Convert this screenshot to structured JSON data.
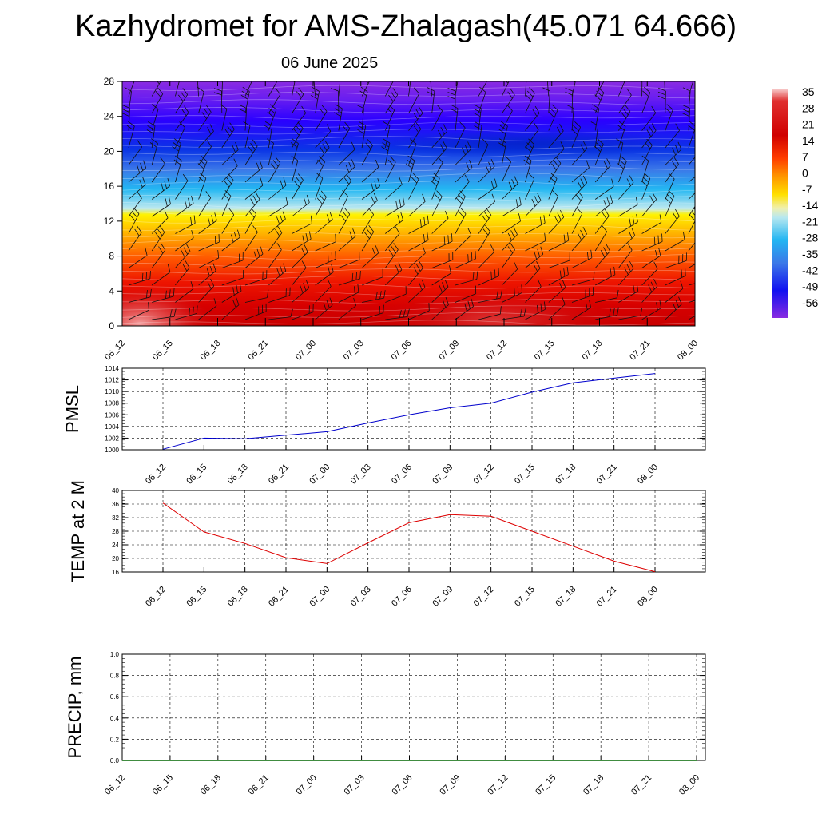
{
  "title": "Kazhydromet for AMS-Zhalagash(45.071 64.666)",
  "subtitle": "06 June 2025",
  "chart_data": [
    {
      "type": "heatmap",
      "title": "",
      "x": [
        "06_12",
        "06_15",
        "06_18",
        "06_21",
        "07_00",
        "07_03",
        "07_06",
        "07_09",
        "07_12",
        "07_15",
        "07_18",
        "07_21",
        "08_00"
      ],
      "y_ticks": [
        0,
        4,
        8,
        12,
        16,
        20,
        24,
        28
      ],
      "ylim": [
        0,
        28
      ],
      "colorbar": {
        "labels": [
          "35",
          "28",
          "21",
          "14",
          "7",
          "0",
          "-7",
          "-14",
          "-21",
          "-28",
          "-35",
          "-42",
          "-49",
          "-56"
        ],
        "range": [
          -60,
          37
        ]
      },
      "wind_barbs": true
    },
    {
      "type": "line",
      "ylabel": "PMSL",
      "x": [
        "06_12",
        "06_15",
        "06_18",
        "06_21",
        "07_00",
        "07_03",
        "07_06",
        "07_09",
        "07_12",
        "07_15",
        "07_18",
        "07_21",
        "08_00"
      ],
      "y_ticks": [
        1000,
        1002,
        1004,
        1006,
        1008,
        1010,
        1012,
        1014
      ],
      "ylim": [
        1000,
        1014
      ],
      "series": [
        {
          "values": [
            1000.1,
            1002,
            1001.9,
            1002.5,
            1003.1,
            1004.6,
            1006,
            1007.2,
            1008,
            1009.9,
            1011.5,
            1012.3,
            1013.1
          ],
          "color": "#0000cc"
        }
      ],
      "grid": true
    },
    {
      "type": "line",
      "ylabel": "TEMP at 2 M",
      "x": [
        "06_12",
        "06_15",
        "06_18",
        "06_21",
        "07_00",
        "07_03",
        "07_06",
        "07_09",
        "07_12",
        "07_15",
        "07_18",
        "07_21",
        "08_00"
      ],
      "y_ticks": [
        16,
        20,
        24,
        28,
        32,
        36,
        40
      ],
      "ylim": [
        16,
        40
      ],
      "series": [
        {
          "values": [
            36.3,
            27.8,
            24.4,
            20.2,
            18.5,
            24.6,
            30.5,
            32.9,
            32.4,
            28,
            23.6,
            19.2,
            16.1
          ],
          "color": "#dd0000"
        }
      ],
      "grid": true
    },
    {
      "type": "line",
      "ylabel": "PRECIP, mm",
      "x": [
        "06_12",
        "06_15",
        "06_18",
        "06_21",
        "07_00",
        "07_03",
        "07_06",
        "07_09",
        "07_12",
        "07_15",
        "07_18",
        "07_21",
        "08_00"
      ],
      "y_ticks": [
        "0.0",
        "0.2",
        "0.4",
        "0.6",
        "0.8",
        "1.0"
      ],
      "ylim": [
        0,
        1
      ],
      "series": [
        {
          "values": [
            0,
            0,
            0,
            0,
            0,
            0,
            0,
            0,
            0,
            0,
            0,
            0,
            0
          ],
          "color": "#006600"
        }
      ],
      "grid": true
    }
  ]
}
